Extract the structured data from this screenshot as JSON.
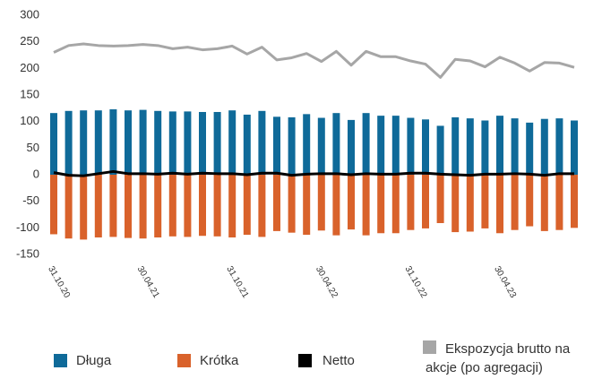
{
  "chart_data": {
    "type": "bar",
    "categories": [
      "31.10.20",
      null,
      null,
      null,
      null,
      null,
      "30.04.21",
      null,
      null,
      null,
      null,
      null,
      "31.10.21",
      null,
      null,
      null,
      null,
      null,
      "30.04.22",
      null,
      null,
      null,
      null,
      null,
      "31.10.22",
      null,
      null,
      null,
      null,
      null,
      "30.04.23",
      null,
      null,
      null,
      null,
      null
    ],
    "series": [
      {
        "name": "Długa",
        "color": "#0f6a99",
        "type": "bar",
        "values": [
          116,
          120,
          121,
          121,
          123,
          121,
          122,
          120,
          119,
          119,
          118,
          118,
          121,
          113,
          120,
          109,
          108,
          114,
          107,
          116,
          103,
          116,
          111,
          111,
          107,
          104,
          92,
          108,
          106,
          102,
          111,
          106,
          98,
          105,
          106,
          102
        ]
      },
      {
        "name": "Krótka",
        "color": "#d9622b",
        "type": "bar",
        "values": [
          -112,
          -120,
          -122,
          -118,
          -117,
          -119,
          -120,
          -118,
          -116,
          -117,
          -115,
          -116,
          -118,
          -113,
          -117,
          -106,
          -109,
          -113,
          -105,
          -114,
          -103,
          -114,
          -110,
          -110,
          -104,
          -101,
          -91,
          -108,
          -107,
          -101,
          -110,
          -104,
          -97,
          -106,
          -104,
          -100
        ]
      },
      {
        "name": "Netto",
        "color": "#000000",
        "type": "line",
        "values": [
          4,
          -1,
          -2,
          2,
          6,
          2,
          2,
          1,
          3,
          1,
          3,
          2,
          2,
          0,
          3,
          3,
          -1,
          1,
          2,
          2,
          0,
          2,
          1,
          1,
          3,
          3,
          1,
          0,
          -1,
          1,
          1,
          2,
          1,
          -1,
          2,
          2
        ]
      },
      {
        "name": "Ekspozycja brutto na akcje (po agregacji)",
        "color": "#a6a6a6",
        "type": "line",
        "values": [
          230,
          243,
          246,
          243,
          242,
          243,
          245,
          243,
          237,
          240,
          235,
          237,
          242,
          227,
          240,
          216,
          220,
          228,
          213,
          232,
          206,
          232,
          222,
          222,
          214,
          208,
          183,
          217,
          214,
          203,
          221,
          210,
          195,
          211,
          210,
          202
        ]
      }
    ],
    "ylim": [
      -150,
      300
    ],
    "yticks": [
      -150,
      -100,
      -50,
      0,
      50,
      100,
      150,
      200,
      250,
      300
    ],
    "grid": false
  }
}
